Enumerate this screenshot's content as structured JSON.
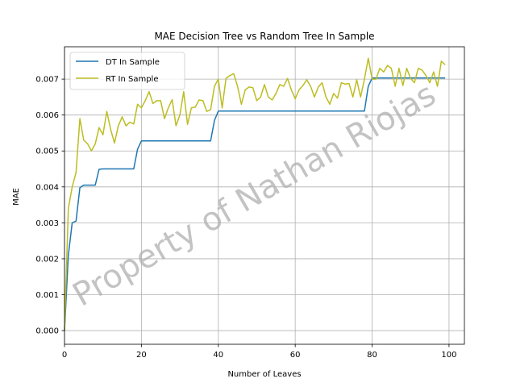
{
  "chart_data": {
    "type": "line",
    "title": "MAE Decision Tree vs Random Tree In Sample",
    "xlabel": "Number of Leaves",
    "ylabel": "MAE",
    "xlim": [
      0,
      104
    ],
    "ylim": [
      -0.00038,
      0.0079
    ],
    "xticks": [
      0,
      20,
      40,
      60,
      80,
      100
    ],
    "yticks": [
      0.0,
      0.001,
      0.002,
      0.003,
      0.004,
      0.005,
      0.006,
      0.007
    ],
    "ytick_labels": [
      "0.000",
      "0.001",
      "0.002",
      "0.003",
      "0.004",
      "0.005",
      "0.006",
      "0.007"
    ],
    "grid": true,
    "legend_position": "top-left",
    "watermark": "Property of Nathan Riojas",
    "x": [
      0,
      1,
      2,
      3,
      4,
      5,
      6,
      7,
      8,
      9,
      10,
      11,
      12,
      13,
      14,
      15,
      16,
      17,
      18,
      19,
      20,
      21,
      22,
      23,
      24,
      25,
      26,
      27,
      28,
      29,
      30,
      31,
      32,
      33,
      34,
      35,
      36,
      37,
      38,
      39,
      40,
      41,
      42,
      43,
      44,
      45,
      46,
      47,
      48,
      49,
      50,
      51,
      52,
      53,
      54,
      55,
      56,
      57,
      58,
      59,
      60,
      61,
      62,
      63,
      64,
      65,
      66,
      67,
      68,
      69,
      70,
      71,
      72,
      73,
      74,
      75,
      76,
      77,
      78,
      79,
      80,
      81,
      82,
      83,
      84,
      85,
      86,
      87,
      88,
      89,
      90,
      91,
      92,
      93,
      94,
      95,
      96,
      97,
      98,
      99
    ],
    "series": [
      {
        "name": "DT In Sample",
        "color": "#1f77b4",
        "values": [
          0.0,
          0.0021,
          0.003,
          0.00305,
          0.00398,
          0.00405,
          0.00405,
          0.00405,
          0.00405,
          0.00449,
          0.0045,
          0.0045,
          0.0045,
          0.0045,
          0.0045,
          0.0045,
          0.0045,
          0.0045,
          0.0045,
          0.00505,
          0.00528,
          0.00528,
          0.00528,
          0.00528,
          0.00528,
          0.00528,
          0.00528,
          0.00528,
          0.00528,
          0.00528,
          0.00528,
          0.00528,
          0.00528,
          0.00528,
          0.00528,
          0.00528,
          0.00528,
          0.00528,
          0.00528,
          0.00585,
          0.00611,
          0.00611,
          0.00611,
          0.00611,
          0.00611,
          0.00611,
          0.00611,
          0.00611,
          0.00611,
          0.00611,
          0.00611,
          0.00611,
          0.00611,
          0.00611,
          0.00611,
          0.00611,
          0.00611,
          0.00611,
          0.00611,
          0.00611,
          0.00611,
          0.00611,
          0.00611,
          0.00611,
          0.00611,
          0.00611,
          0.00611,
          0.00611,
          0.00611,
          0.00611,
          0.00611,
          0.00611,
          0.00611,
          0.00611,
          0.00611,
          0.00611,
          0.00611,
          0.00611,
          0.00611,
          0.0068,
          0.00703,
          0.00703,
          0.00703,
          0.00703,
          0.00703,
          0.00703,
          0.00703,
          0.00703,
          0.00703,
          0.00703,
          0.00703,
          0.00703,
          0.00703,
          0.00703,
          0.00703,
          0.00703,
          0.00703,
          0.00703,
          0.00703,
          0.00703
        ]
      },
      {
        "name": "RT In Sample",
        "color": "#bcbd22",
        "values": [
          0.0,
          0.0034,
          0.004,
          0.0044,
          0.0059,
          0.0053,
          0.0052,
          0.005,
          0.0052,
          0.00565,
          0.00545,
          0.0061,
          0.0056,
          0.00522,
          0.0057,
          0.00595,
          0.0057,
          0.0058,
          0.00575,
          0.0063,
          0.0062,
          0.0064,
          0.00665,
          0.00632,
          0.0064,
          0.0064,
          0.0059,
          0.0062,
          0.00643,
          0.0057,
          0.006,
          0.00665,
          0.00574,
          0.0062,
          0.00622,
          0.00642,
          0.0064,
          0.0061,
          0.00615,
          0.0068,
          0.007,
          0.0062,
          0.00702,
          0.0071,
          0.00715,
          0.0068,
          0.0063,
          0.0067,
          0.00678,
          0.00676,
          0.0064,
          0.0065,
          0.00685,
          0.0065,
          0.00642,
          0.0066,
          0.00685,
          0.0068,
          0.00702,
          0.0067,
          0.00645,
          0.0067,
          0.00682,
          0.00698,
          0.0068,
          0.0065,
          0.00678,
          0.0069,
          0.0065,
          0.0063,
          0.0066,
          0.00647,
          0.0069,
          0.00686,
          0.00688,
          0.0065,
          0.00698,
          0.0065,
          0.007,
          0.00758,
          0.007,
          0.007,
          0.0073,
          0.0072,
          0.00738,
          0.0073,
          0.0068,
          0.0073,
          0.00682,
          0.0073,
          0.00702,
          0.0069,
          0.0073,
          0.00725,
          0.0071,
          0.0069,
          0.0072,
          0.0068,
          0.0075,
          0.0074
        ]
      }
    ]
  }
}
